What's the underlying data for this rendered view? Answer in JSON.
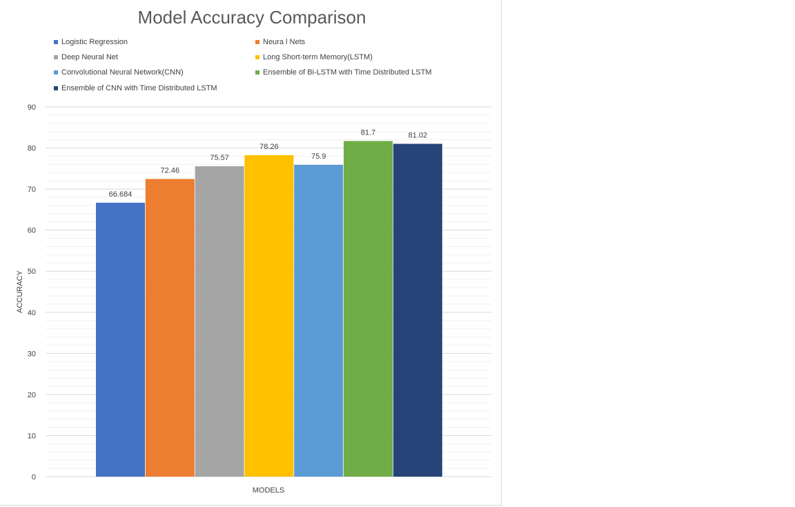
{
  "chart_data": {
    "type": "bar",
    "title": "Model Accuracy Comparison",
    "xlabel": "MODELS",
    "ylabel": "ACCURACY",
    "ylim": [
      0,
      90
    ],
    "yticks": [
      "0",
      "10",
      "20",
      "30",
      "40",
      "50",
      "60",
      "70",
      "80",
      "90"
    ],
    "grid": true,
    "legend_position": "top",
    "series": [
      {
        "name": "Logistic Regression",
        "value": 66.684,
        "label": "66.684",
        "color": "#4472c4"
      },
      {
        "name": "Neura l Nets",
        "value": 72.46,
        "label": "72.46",
        "color": "#ed7d31"
      },
      {
        "name": "Deep Neural Net",
        "value": 75.57,
        "label": "75.57",
        "color": "#a5a5a5"
      },
      {
        "name": "Long Short-term Memory(LSTM)",
        "value": 78.26,
        "label": "78.26",
        "color": "#ffc000"
      },
      {
        "name": "Convolutional Neural Network(CNN)",
        "value": 75.9,
        "label": "75.9",
        "color": "#5b9bd5"
      },
      {
        "name": "Ensemble of  Bi-LSTM with Time Distributed LSTM",
        "value": 81.7,
        "label": "81.7",
        "color": "#70ad47"
      },
      {
        "name": "Ensemble of  CNN with Time Distributed LSTM",
        "value": 81.02,
        "label": "81.02",
        "color": "#264478"
      }
    ]
  }
}
